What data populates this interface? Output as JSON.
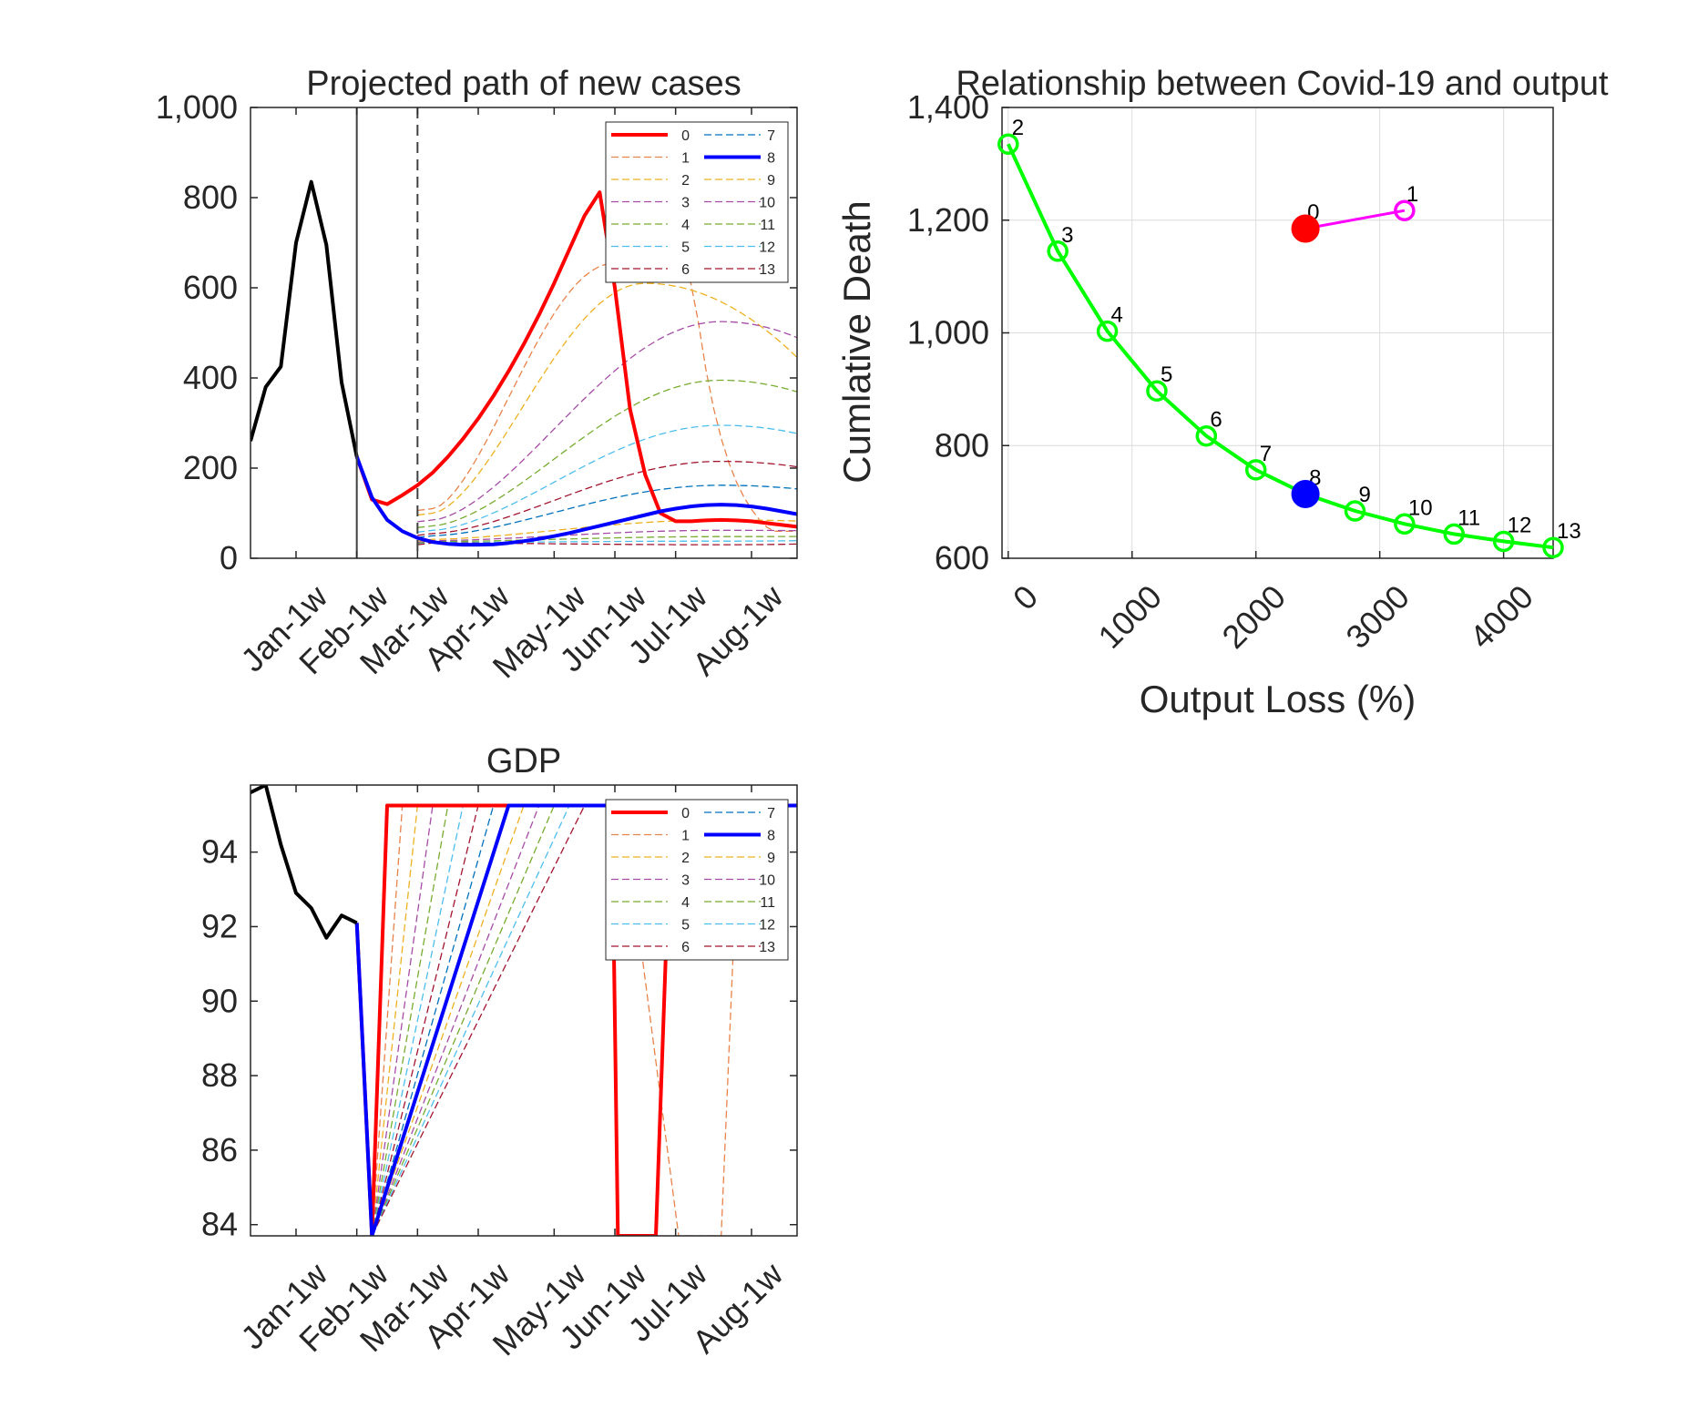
{
  "chart_data": [
    {
      "id": "cases",
      "type": "line",
      "title": "Projected path of new cases",
      "x_tick_labels": [
        "Jan-1w",
        "Feb-1w",
        "Mar-1w",
        "Apr-1w",
        "May-1w",
        "Jun-1w",
        "Jul-1w",
        "Aug-1w"
      ],
      "x_tick_weeks": [
        3,
        7,
        11,
        15,
        20,
        24,
        28,
        33
      ],
      "xlim": [
        0,
        36
      ],
      "ylim": [
        0,
        1000
      ],
      "y_ticks": [
        0,
        200,
        400,
        600,
        800,
        1000
      ],
      "y_tick_labels": [
        "0",
        "200",
        "400",
        "600",
        "800",
        "1,000"
      ],
      "vlines": [
        {
          "week": 7,
          "style": "solid"
        },
        {
          "week": 11,
          "style": "dashed"
        }
      ],
      "history": {
        "x": [
          0,
          1,
          2,
          3,
          4,
          5,
          6,
          7
        ],
        "y": [
          260,
          380,
          425,
          700,
          835,
          695,
          390,
          225
        ]
      },
      "series": [
        {
          "name": "0",
          "color": "#ff0000",
          "style": "bold",
          "scenario": 0,
          "x": [
            7,
            8,
            9,
            10,
            11,
            12,
            13,
            14,
            15,
            16,
            17,
            18,
            19,
            20,
            21,
            22,
            23,
            24,
            25,
            26,
            27,
            28,
            29,
            30,
            31,
            32,
            33,
            34,
            35,
            36
          ],
          "y": [
            225,
            130,
            120,
            140,
            162,
            190,
            225,
            265,
            310,
            360,
            415,
            475,
            540,
            610,
            685,
            760,
            812,
            600,
            330,
            185,
            100,
            82,
            82,
            84,
            85,
            84,
            82,
            78,
            74,
            70
          ]
        },
        {
          "name": "8",
          "color": "#0000ff",
          "style": "bold",
          "scenario": 8,
          "x": [
            7,
            8,
            9,
            10,
            11,
            12,
            13,
            14,
            15,
            16,
            17,
            18,
            19,
            20,
            21,
            22,
            23,
            24,
            25,
            26,
            27,
            28,
            29,
            30,
            31,
            32,
            33,
            34,
            35,
            36
          ],
          "y": [
            225,
            135,
            85,
            60,
            45,
            36,
            32,
            30,
            30,
            31,
            34,
            38,
            43,
            49,
            56,
            64,
            72,
            80,
            88,
            96,
            104,
            110,
            115,
            118,
            119,
            118,
            115,
            110,
            104,
            98
          ]
        },
        {
          "name": "1",
          "color": "#e8834a",
          "style": "dashed",
          "peak_week": 24,
          "peak": 655,
          "cap_week": 29,
          "start": 110
        },
        {
          "name": "2",
          "color": "#edb120",
          "style": "dashed",
          "peak_week": 26,
          "peak": 610,
          "start": 100
        },
        {
          "name": "3",
          "color": "#a64ca6",
          "style": "dashed",
          "peak_week": 31,
          "peak": 525,
          "start": 85
        },
        {
          "name": "4",
          "color": "#77ac30",
          "style": "dashed",
          "peak_week": 31,
          "peak": 395,
          "start": 72
        },
        {
          "name": "5",
          "color": "#4dbeee",
          "style": "dashed",
          "peak_week": 31,
          "peak": 295,
          "start": 62
        },
        {
          "name": "6",
          "color": "#a2142f",
          "style": "dashed",
          "peak_week": 31,
          "peak": 215,
          "start": 55
        },
        {
          "name": "7",
          "color": "#0072bd",
          "style": "dashed",
          "peak_week": 31,
          "peak": 162,
          "start": 50
        },
        {
          "name": "9",
          "color": "#edb120",
          "style": "dashed",
          "peak_week": 31,
          "peak": 85,
          "start": 42
        },
        {
          "name": "10",
          "color": "#a64ca6",
          "style": "dashed",
          "peak_week": 31,
          "peak": 62,
          "start": 39
        },
        {
          "name": "11",
          "color": "#77ac30",
          "style": "dashed",
          "peak_week": 31,
          "peak": 48,
          "start": 37
        },
        {
          "name": "12",
          "color": "#4dbeee",
          "style": "dashed",
          "peak_week": 31,
          "peak": 38,
          "start": 35
        },
        {
          "name": "13",
          "color": "#a2142f",
          "style": "dashed",
          "peak_week": 31,
          "peak": 30,
          "start": 34
        }
      ],
      "legend": {
        "placement": "top-right",
        "columns": [
          [
            "0",
            "1",
            "2",
            "3",
            "4",
            "5",
            "6"
          ],
          [
            "7",
            "8",
            "9",
            "10",
            "11",
            "12",
            "13"
          ]
        ]
      }
    },
    {
      "id": "tradeoff",
      "type": "scatter",
      "title": "Relationship between Covid-19 and output",
      "xlabel": "Output Loss (%)",
      "ylabel": "Cumlative Death",
      "xlim": [
        -50,
        4400
      ],
      "ylim": [
        600,
        1400
      ],
      "x_ticks": [
        0,
        1000,
        2000,
        3000,
        4000
      ],
      "x_tick_labels": [
        "0",
        "1000",
        "2000",
        "3000",
        "4000"
      ],
      "y_ticks": [
        600,
        800,
        1000,
        1200,
        1400
      ],
      "y_tick_labels": [
        "600",
        "800",
        "1,000",
        "1,200",
        "1,400"
      ],
      "grid": true,
      "frontier": {
        "color": "#00ff00",
        "labels": [
          "2",
          "3",
          "4",
          "5",
          "6",
          "7",
          "8",
          "9",
          "10",
          "11",
          "12",
          "13"
        ],
        "x": [
          0,
          400,
          800,
          1200,
          1600,
          2000,
          2400,
          2800,
          3200,
          3600,
          4000,
          4400
        ],
        "y": [
          1335,
          1145,
          1003,
          897,
          817,
          757,
          714,
          684,
          661,
          643,
          630,
          619
        ]
      },
      "pair": {
        "color": "#ff00ff",
        "labels": [
          "0",
          "1"
        ],
        "x": [
          2400,
          3200
        ],
        "y": [
          1185,
          1217
        ]
      },
      "highlight": [
        {
          "label": "0",
          "x": 2400,
          "y": 1185,
          "color": "#ff0000"
        },
        {
          "label": "8",
          "x": 2400,
          "y": 714,
          "color": "#0000ff"
        }
      ]
    },
    {
      "id": "gdp",
      "type": "line",
      "title": "GDP",
      "x_tick_labels": [
        "Jan-1w",
        "Feb-1w",
        "Mar-1w",
        "Apr-1w",
        "May-1w",
        "Jun-1w",
        "Jul-1w",
        "Aug-1w"
      ],
      "x_tick_weeks": [
        3,
        7,
        11,
        15,
        20,
        24,
        28,
        33
      ],
      "xlim": [
        0,
        36
      ],
      "ylim": [
        83.7,
        95.8
      ],
      "y_ticks": [
        84,
        86,
        88,
        90,
        92,
        94
      ],
      "y_tick_labels": [
        "84",
        "86",
        "88",
        "90",
        "92",
        "94"
      ],
      "level_full": 95.25,
      "level_low": 83.7,
      "history": {
        "x": [
          0,
          1,
          2,
          3,
          4,
          5,
          6,
          7
        ],
        "y": [
          95.6,
          95.8,
          94.2,
          92.9,
          92.5,
          91.7,
          92.3,
          92.1
        ]
      },
      "series": [
        {
          "name": "0",
          "color": "#ff0000",
          "style": "bold",
          "x": [
            7,
            8,
            9,
            23.8,
            24.2,
            26.7,
            27.7,
            36
          ],
          "y": [
            92.1,
            83.7,
            95.25,
            95.25,
            83.7,
            83.7,
            95.25,
            95.25
          ]
        },
        {
          "name": "8",
          "color": "#0000ff",
          "style": "bold",
          "x": [
            7,
            8,
            17,
            36
          ],
          "y": [
            92.1,
            83.7,
            95.25,
            95.25
          ]
        },
        {
          "name": "1",
          "color": "#e8834a",
          "style": "dashed",
          "rise_end_week": 10,
          "drop": [
            24.5,
            28.2,
            31.0,
            32.2
          ]
        },
        {
          "name": "2",
          "color": "#edb120",
          "style": "dashed",
          "rise_end_week": 11
        },
        {
          "name": "3",
          "color": "#a64ca6",
          "style": "dashed",
          "rise_end_week": 12
        },
        {
          "name": "4",
          "color": "#77ac30",
          "style": "dashed",
          "rise_end_week": 13
        },
        {
          "name": "5",
          "color": "#4dbeee",
          "style": "dashed",
          "rise_end_week": 14
        },
        {
          "name": "6",
          "color": "#a2142f",
          "style": "dashed",
          "rise_end_week": 15
        },
        {
          "name": "7",
          "color": "#0072bd",
          "style": "dashed",
          "rise_end_week": 16
        },
        {
          "name": "9",
          "color": "#edb120",
          "style": "dashed",
          "rise_end_week": 18
        },
        {
          "name": "10",
          "color": "#a64ca6",
          "style": "dashed",
          "rise_end_week": 19
        },
        {
          "name": "11",
          "color": "#77ac30",
          "style": "dashed",
          "rise_end_week": 20
        },
        {
          "name": "12",
          "color": "#4dbeee",
          "style": "dashed",
          "rise_end_week": 21
        },
        {
          "name": "13",
          "color": "#a2142f",
          "style": "dashed",
          "rise_end_week": 22
        }
      ],
      "legend": {
        "placement": "top-right",
        "columns": [
          [
            "0",
            "1",
            "2",
            "3",
            "4",
            "5",
            "6"
          ],
          [
            "7",
            "8",
            "9",
            "10",
            "11",
            "12",
            "13"
          ]
        ]
      }
    }
  ]
}
